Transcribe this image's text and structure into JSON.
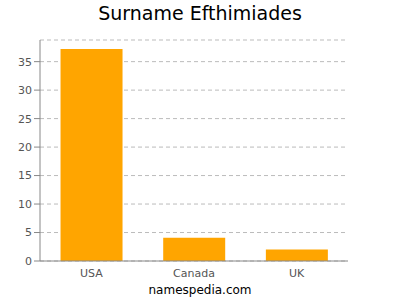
{
  "chart_data": {
    "type": "bar",
    "title": "Surname Efthimiades",
    "annotations": [
      "namespedia.com"
    ],
    "categories": [
      "USA",
      "Canada",
      "UK"
    ],
    "values": [
      37.2,
      4.1,
      2.0
    ],
    "color": "#ffa500",
    "ylim": [
      0,
      38.8
    ],
    "yticks": [
      0,
      5,
      10,
      15,
      20,
      25,
      30,
      35
    ],
    "grid": true
  }
}
